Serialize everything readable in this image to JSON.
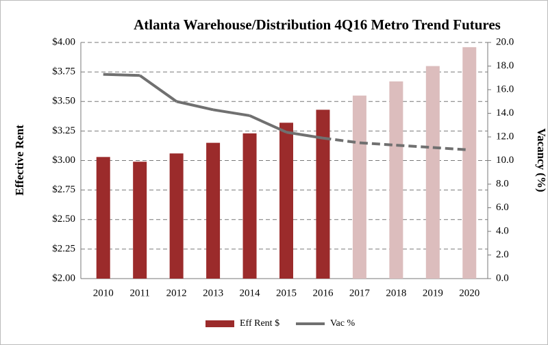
{
  "chart_data": {
    "type": "bar-line",
    "title": "Atlanta Warehouse/Distribution 4Q16 Metro Trend Futures",
    "ylabel": "Effective Rent",
    "y2label": "Vacancy (%)",
    "categories": [
      "2010",
      "2011",
      "2012",
      "2013",
      "2014",
      "2015",
      "2016",
      "2017",
      "2018",
      "2019",
      "2020"
    ],
    "series": [
      {
        "name": "Eff Rent $",
        "type": "bar",
        "color": "#9b2b2b",
        "colors": [
          "#9b2b2b",
          "#9b2b2b",
          "#9b2b2b",
          "#9b2b2b",
          "#9b2b2b",
          "#9b2b2b",
          "#9b2b2b",
          "#dcbdbd",
          "#dcbdbd",
          "#dcbdbd",
          "#dcbdbd"
        ],
        "values": [
          3.03,
          2.99,
          3.06,
          3.15,
          3.23,
          3.32,
          3.43,
          3.55,
          3.67,
          3.8,
          3.96
        ]
      },
      {
        "name": "Vac %",
        "type": "line",
        "axis": "y2",
        "color": "#707070",
        "dashed": [
          false,
          false,
          false,
          false,
          false,
          false,
          false,
          true,
          true,
          true,
          true
        ],
        "values": [
          17.3,
          17.2,
          15.0,
          14.3,
          13.8,
          12.4,
          11.9,
          11.5,
          11.3,
          11.1,
          10.9
        ]
      }
    ],
    "ylim": [
      2,
      4
    ],
    "yticks": [
      {
        "value": 2,
        "label": "$2.00"
      },
      {
        "value": 2.25,
        "label": "$2.25"
      },
      {
        "value": 2.5,
        "label": "$2.50"
      },
      {
        "value": 2.75,
        "label": "$2.75"
      },
      {
        "value": 3,
        "label": "$3.00"
      },
      {
        "value": 3.25,
        "label": "$3.25"
      },
      {
        "value": 3.5,
        "label": "$3.50"
      },
      {
        "value": 3.75,
        "label": "$3.75"
      },
      {
        "value": 4,
        "label": "$4.00"
      }
    ],
    "y2lim": [
      0,
      20
    ],
    "y2ticks": [
      {
        "value": 0,
        "label": "0.0"
      },
      {
        "value": 2,
        "label": "2.0"
      },
      {
        "value": 4,
        "label": "4.0"
      },
      {
        "value": 6,
        "label": "6.0"
      },
      {
        "value": 8,
        "label": "8.0"
      },
      {
        "value": 10,
        "label": "10.0"
      },
      {
        "value": 12,
        "label": "12.0"
      },
      {
        "value": 14,
        "label": "14.0"
      },
      {
        "value": 16,
        "label": "16.0"
      },
      {
        "value": 18,
        "label": "18.0"
      },
      {
        "value": 20,
        "label": "20.0"
      }
    ],
    "grid": true,
    "legend": "bottom"
  }
}
